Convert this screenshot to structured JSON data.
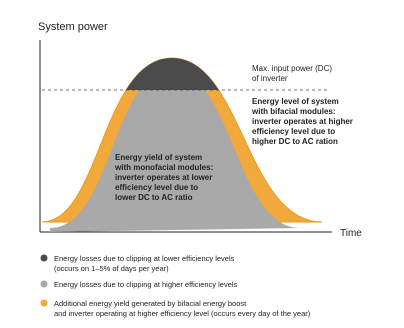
{
  "header": {
    "title": "System power"
  },
  "axis": {
    "x_label": "Time"
  },
  "annotations": {
    "inverter_limit": [
      "Max. input power (DC)",
      "of inverter"
    ],
    "bifacial": [
      "Energy level of system",
      "with bifacial modules:",
      "inverter operates at higher",
      "efficiency level due to",
      "higher DC to AC ration"
    ],
    "monofacial": [
      "Energy yield of system",
      "with monofacial modules:",
      "inverter operates at lower",
      "efficiency level due to",
      "lower DC to AC ratio"
    ]
  },
  "legend": [
    {
      "lines": [
        "Energy losses due to clipping at lower efficiency levels",
        "(occurs on 1–5% of days per year)"
      ]
    },
    {
      "lines": [
        "Energy losses due to clipping at higher efficiency levels"
      ]
    },
    {
      "lines": [
        "Additional energy yield generated by bifacial energy boost",
        "and inverter operating at higher efficiency level (occurs every day of the year)"
      ]
    }
  ]
}
